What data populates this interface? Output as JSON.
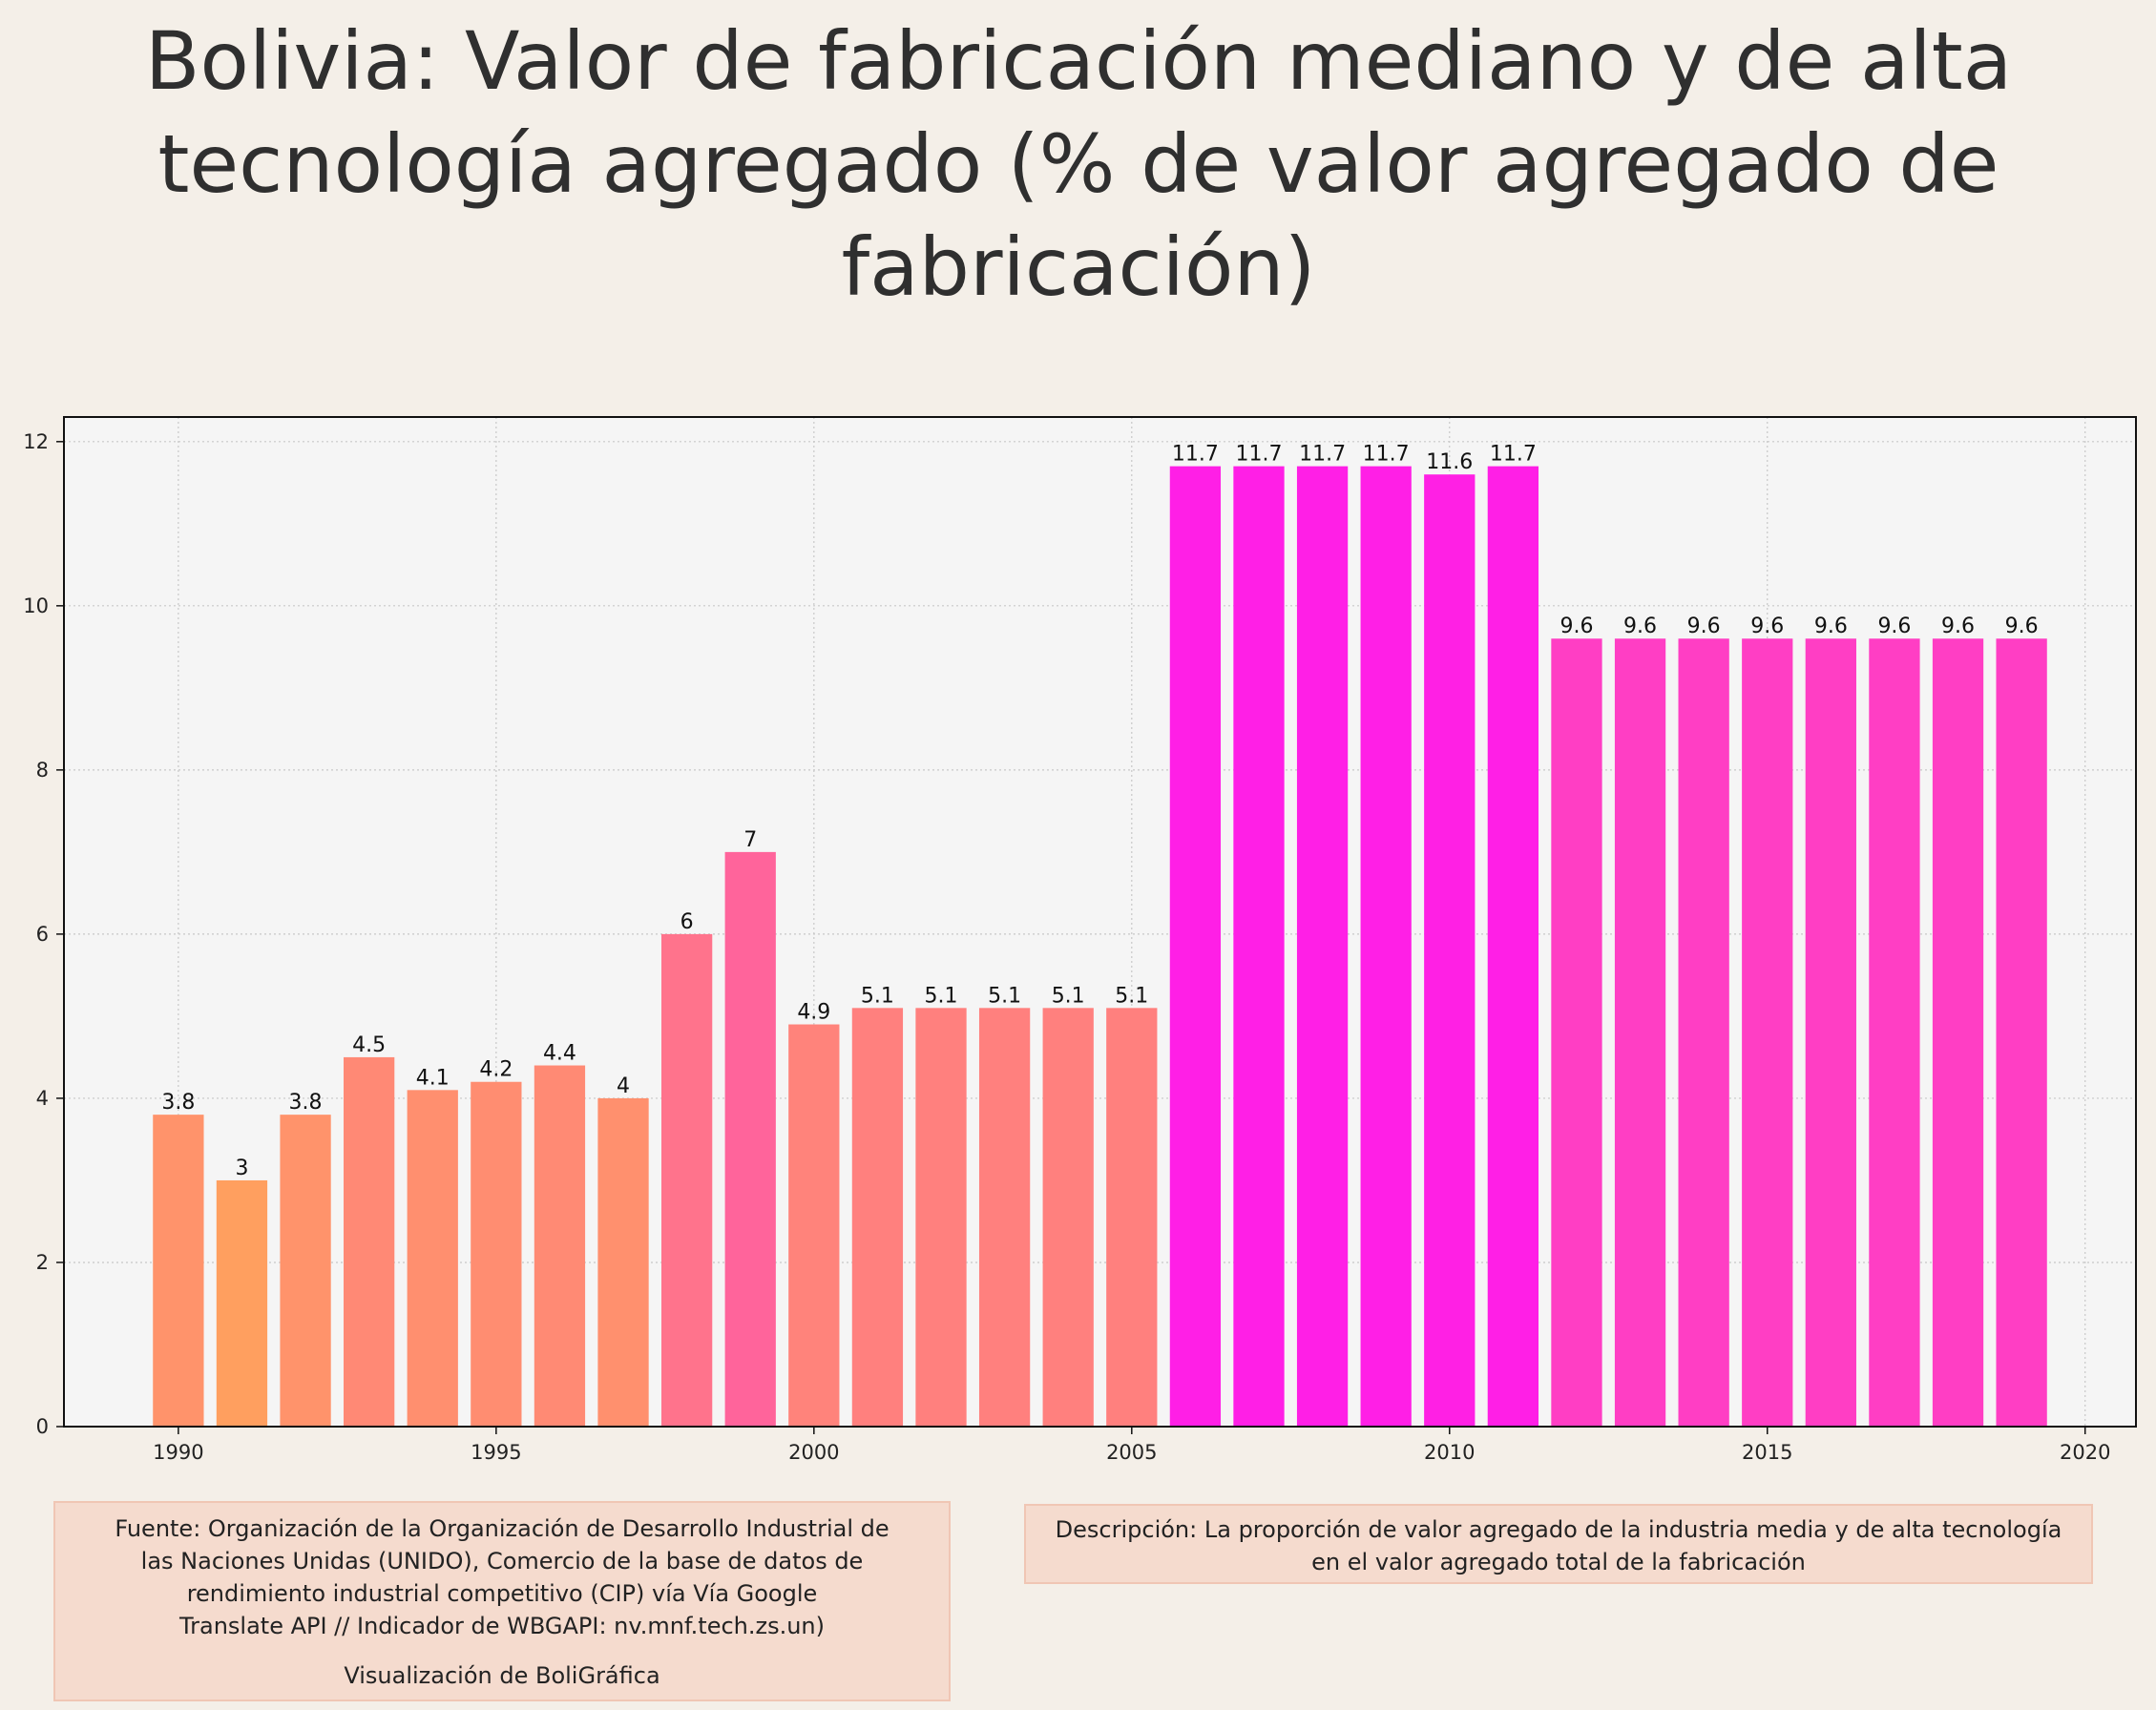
{
  "title": "Bolivia:  Valor de fabricación mediano y de alta tecnología agregado (% de valor agregado de fabricación)",
  "chart_data": {
    "type": "bar",
    "title": "Bolivia:  Valor de fabricación mediano y de alta tecnología agregado (% de valor agregado de fabricación)",
    "xlabel": "",
    "ylabel": "",
    "x": [
      1990,
      1991,
      1992,
      1993,
      1994,
      1995,
      1996,
      1997,
      1998,
      1999,
      2000,
      2001,
      2002,
      2003,
      2004,
      2005,
      2006,
      2007,
      2008,
      2009,
      2010,
      2011,
      2012,
      2013,
      2014,
      2015,
      2016,
      2017,
      2018,
      2019
    ],
    "values": [
      3.8,
      3,
      3.8,
      4.5,
      4.1,
      4.2,
      4.4,
      4,
      6,
      7,
      4.9,
      5.1,
      5.1,
      5.1,
      5.1,
      5.1,
      11.7,
      11.7,
      11.7,
      11.7,
      11.6,
      11.7,
      9.6,
      9.6,
      9.6,
      9.6,
      9.6,
      9.6,
      9.6,
      9.6
    ],
    "data_labels": [
      "3.8",
      "3",
      "3.8",
      "4.5",
      "4.1",
      "4.2",
      "4.4",
      "4",
      "6",
      "7",
      "4.9",
      "5.1",
      "5.1",
      "5.1",
      "5.1",
      "5.1",
      "11.7",
      "11.7",
      "11.7",
      "11.7",
      "11.6",
      "11.7",
      "9.6",
      "9.6",
      "9.6",
      "9.6",
      "9.6",
      "9.6",
      "9.6",
      "9.6"
    ],
    "xlim": [
      1988.2,
      2020.8
    ],
    "ylim": [
      0,
      12.3
    ],
    "x_ticks": [
      1990,
      1995,
      2000,
      2005,
      2010,
      2015,
      2020
    ],
    "y_ticks": [
      0,
      2,
      4,
      6,
      8,
      10,
      12
    ],
    "grid": true,
    "colors": {
      "low": "#ff9f5f",
      "mid": "#ff5fa0",
      "high": "#ff1fe6",
      "plot_background": "#f5f5f5",
      "page_background": "#f4efe8"
    }
  },
  "footer": {
    "source_lines": [
      "Fuente: Organización de la Organización de Desarrollo Industrial de",
      "las Naciones Unidas (UNIDO), Comercio de la base de datos de",
      "rendimiento industrial competitivo (CIP) vía Vía Google",
      "Translate API // Indicador de WBGAPI: nv.mnf.tech.zs.un)"
    ],
    "credit": "Visualización de BoliGráfica",
    "description_lines": [
      "Descripción: La proporción de valor agregado de la industria media y de alta tecnología",
      "en el valor agregado total de la fabricación"
    ]
  }
}
